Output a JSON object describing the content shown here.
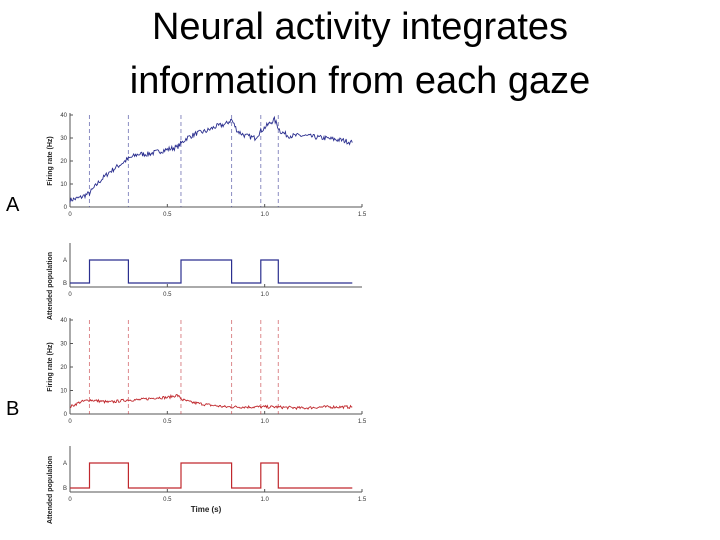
{
  "slide": {
    "title_line1": "Neural activity integrates",
    "title_line2": "information from each gaze"
  },
  "panels": [
    {
      "label": "A"
    },
    {
      "label": "B"
    }
  ],
  "chart_data": [
    {
      "type": "line",
      "panel": "A",
      "ylabel": "Firing rate (Hz)",
      "xlabel": "",
      "xlim": [
        0,
        1.5
      ],
      "ylim": [
        0,
        40
      ],
      "xticks": [
        "0",
        "0.5",
        "1.0",
        "1.5"
      ],
      "yticks": [
        "0",
        "10",
        "20",
        "30",
        "40"
      ],
      "color": "#2b2f8f",
      "gaze_switch_times": [
        0.1,
        0.3,
        0.57,
        0.83,
        0.98,
        1.07
      ],
      "series": [
        {
          "x": [
            0,
            0.05,
            0.1,
            0.15,
            0.2,
            0.25,
            0.3,
            0.35,
            0.4,
            0.45,
            0.5,
            0.55,
            0.6,
            0.65,
            0.7,
            0.75,
            0.8,
            0.83,
            0.86,
            0.9,
            0.95,
            0.98,
            1.02,
            1.05,
            1.08,
            1.12,
            1.2,
            1.3,
            1.4,
            1.45
          ],
          "y": [
            3,
            4,
            6,
            11,
            15,
            18,
            21,
            23,
            23,
            24,
            25,
            26,
            30,
            32,
            33,
            35,
            36,
            38,
            33,
            31,
            30,
            33,
            36,
            38,
            33,
            31,
            31,
            30,
            29,
            28
          ]
        }
      ]
    },
    {
      "type": "line",
      "panel": "A",
      "ylabel": "Attended population",
      "xlabel": "",
      "xlim": [
        0,
        1.5
      ],
      "yticks": [
        "A",
        "B"
      ],
      "xticks": [
        "0",
        "0.5",
        "1.0"
      ],
      "color": "#2b2f8f",
      "series": [
        {
          "x": [
            0,
            0.1,
            0.1,
            0.3,
            0.3,
            0.57,
            0.57,
            0.83,
            0.83,
            0.98,
            0.98,
            1.07,
            1.07,
            1.45
          ],
          "y": [
            "B",
            "B",
            "A",
            "A",
            "B",
            "B",
            "A",
            "A",
            "B",
            "B",
            "A",
            "A",
            "B",
            "B"
          ]
        }
      ]
    },
    {
      "type": "line",
      "panel": "B",
      "ylabel": "Firing rate (Hz)",
      "xlabel": "",
      "xlim": [
        0,
        1.5
      ],
      "ylim": [
        0,
        40
      ],
      "xticks": [
        "0",
        "0.5",
        "1.0",
        "1.5"
      ],
      "yticks": [
        "0",
        "10",
        "20",
        "30",
        "40"
      ],
      "color": "#c0282d",
      "gaze_switch_times": [
        0.1,
        0.3,
        0.57,
        0.83,
        0.98,
        1.07
      ],
      "series": [
        {
          "x": [
            0,
            0.05,
            0.1,
            0.2,
            0.3,
            0.35,
            0.45,
            0.5,
            0.55,
            0.58,
            0.62,
            0.7,
            0.8,
            0.85,
            0.95,
            1.05,
            1.2,
            1.3,
            1.4,
            1.45
          ],
          "y": [
            3,
            5,
            6,
            5,
            6,
            6,
            7,
            7,
            8,
            6,
            5,
            4,
            3,
            3,
            3,
            3,
            2.5,
            3,
            3,
            3
          ]
        }
      ]
    },
    {
      "type": "line",
      "panel": "B",
      "ylabel": "Attended population",
      "xlabel": "Time (s)",
      "xlim": [
        0,
        1.5
      ],
      "yticks": [
        "A",
        "B"
      ],
      "xticks": [
        "0",
        "0.5",
        "1.0",
        "1.5"
      ],
      "color": "#c0282d",
      "series": [
        {
          "x": [
            0,
            0.1,
            0.1,
            0.3,
            0.3,
            0.57,
            0.57,
            0.83,
            0.83,
            0.98,
            0.98,
            1.07,
            1.07,
            1.45
          ],
          "y": [
            "B",
            "B",
            "A",
            "A",
            "B",
            "B",
            "A",
            "A",
            "B",
            "B",
            "A",
            "A",
            "B",
            "B"
          ]
        }
      ]
    }
  ]
}
